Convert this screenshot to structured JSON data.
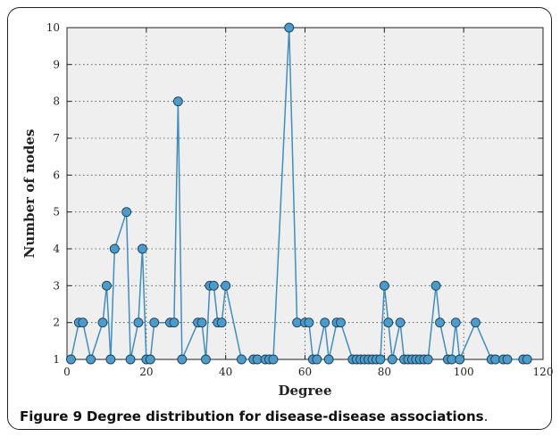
{
  "caption": {
    "label": "Figure 9",
    "text": "Degree distribution for disease-disease associations"
  },
  "chart_data": {
    "type": "line",
    "xlabel": "Degree",
    "ylabel": "Number of nodes",
    "xlim": [
      0,
      120
    ],
    "ylim": [
      1,
      10
    ],
    "xticks": [
      0,
      20,
      40,
      60,
      80,
      100,
      120
    ],
    "yticks": [
      1,
      2,
      3,
      4,
      5,
      6,
      7,
      8,
      9,
      10
    ],
    "grid": true,
    "line_color": "#3f8ec0",
    "marker_color": "#4a9ccc",
    "series": [
      {
        "x": [
          1,
          3,
          4,
          6,
          9,
          10,
          11,
          12,
          15,
          16,
          18,
          19,
          20,
          21,
          22,
          26,
          27,
          28,
          29,
          33,
          34,
          35,
          36,
          37,
          38,
          39,
          40,
          44,
          47,
          48,
          50,
          51,
          52,
          56,
          58,
          60,
          61,
          62,
          63,
          65,
          66,
          68,
          69,
          72,
          73,
          74,
          75,
          76,
          77,
          78,
          79,
          80,
          81,
          82,
          84,
          85,
          86,
          87,
          88,
          89,
          90,
          91,
          93,
          94,
          96,
          97,
          98,
          99,
          103,
          107,
          108,
          110,
          111,
          115,
          116
        ],
        "y": [
          1,
          2,
          2,
          1,
          2,
          3,
          1,
          4,
          5,
          1,
          2,
          4,
          1,
          1,
          2,
          2,
          2,
          8,
          1,
          2,
          2,
          1,
          3,
          3,
          2,
          2,
          3,
          1,
          1,
          1,
          1,
          1,
          1,
          10,
          2,
          2,
          2,
          1,
          1,
          2,
          1,
          2,
          2,
          1,
          1,
          1,
          1,
          1,
          1,
          1,
          1,
          3,
          2,
          1,
          2,
          1,
          1,
          1,
          1,
          1,
          1,
          1,
          3,
          2,
          1,
          1,
          2,
          1,
          2,
          1,
          1,
          1,
          1,
          1,
          1
        ]
      }
    ]
  }
}
